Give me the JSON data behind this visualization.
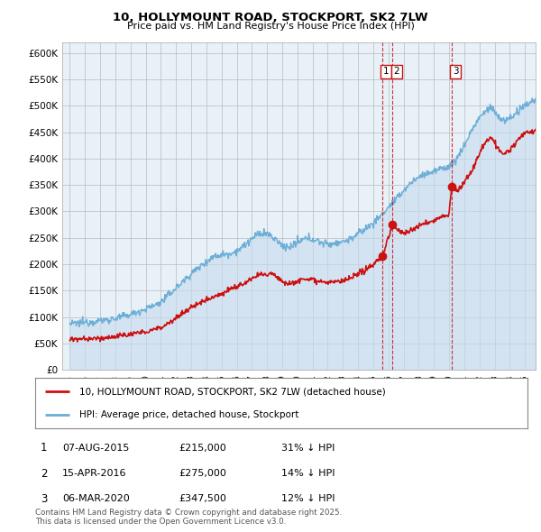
{
  "title": "10, HOLLYMOUNT ROAD, STOCKPORT, SK2 7LW",
  "subtitle": "Price paid vs. HM Land Registry's House Price Index (HPI)",
  "ylabel_ticks": [
    "£0",
    "£50K",
    "£100K",
    "£150K",
    "£200K",
    "£250K",
    "£300K",
    "£350K",
    "£400K",
    "£450K",
    "£500K",
    "£550K",
    "£600K"
  ],
  "ylim": [
    0,
    620000
  ],
  "ytick_values": [
    0,
    50000,
    100000,
    150000,
    200000,
    250000,
    300000,
    350000,
    400000,
    450000,
    500000,
    550000,
    600000
  ],
  "xlim_start": 1994.5,
  "xlim_end": 2025.7,
  "xtick_years": [
    1995,
    1996,
    1997,
    1998,
    1999,
    2000,
    2001,
    2002,
    2003,
    2004,
    2005,
    2006,
    2007,
    2008,
    2009,
    2010,
    2011,
    2012,
    2013,
    2014,
    2015,
    2016,
    2017,
    2018,
    2019,
    2020,
    2021,
    2022,
    2023,
    2024,
    2025
  ],
  "hpi_color": "#6baed6",
  "hpi_fill_color": "#c6dbef",
  "price_color": "#cc1111",
  "sale1_date": 2015.59,
  "sale1_price": 215000,
  "sale1_label": "1",
  "sale2_date": 2016.28,
  "sale2_price": 275000,
  "sale2_label": "2",
  "sale3_date": 2020.17,
  "sale3_price": 347500,
  "sale3_label": "3",
  "legend_line1": "10, HOLLYMOUNT ROAD, STOCKPORT, SK2 7LW (detached house)",
  "legend_line2": "HPI: Average price, detached house, Stockport",
  "table_row1": [
    "1",
    "07-AUG-2015",
    "£215,000",
    "31% ↓ HPI"
  ],
  "table_row2": [
    "2",
    "15-APR-2016",
    "£275,000",
    "14% ↓ HPI"
  ],
  "table_row3": [
    "3",
    "06-MAR-2020",
    "£347,500",
    "12% ↓ HPI"
  ],
  "footer": "Contains HM Land Registry data © Crown copyright and database right 2025.\nThis data is licensed under the Open Government Licence v3.0.",
  "background_color": "#ffffff",
  "chart_bg_color": "#e8f0f8",
  "grid_color": "#bbbbbb"
}
